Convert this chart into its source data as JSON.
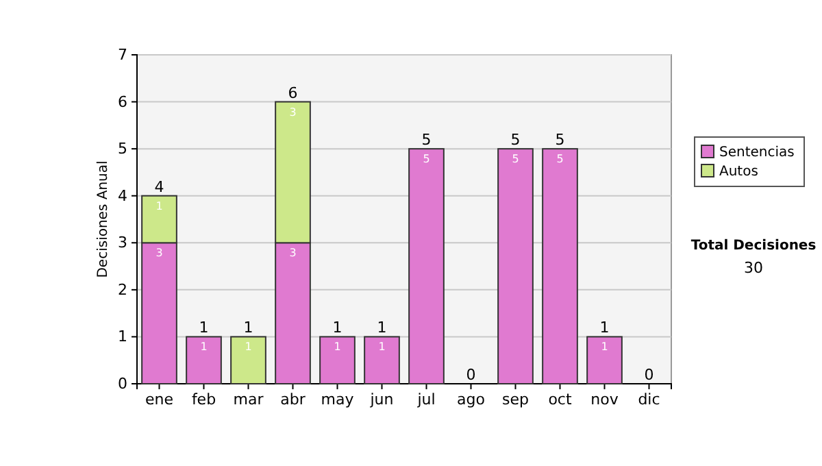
{
  "chart_data": {
    "type": "bar",
    "stacked": true,
    "ylabel": "Decisiones Anual",
    "categories": [
      "ene",
      "feb",
      "mar",
      "abr",
      "may",
      "jun",
      "jul",
      "ago",
      "sep",
      "oct",
      "nov",
      "dic"
    ],
    "series": [
      {
        "name": "Sentencias",
        "color": "#e07ad0",
        "values": [
          3,
          1,
          0,
          3,
          1,
          1,
          5,
          0,
          5,
          5,
          1,
          0
        ],
        "value_labels": [
          "3",
          "1",
          null,
          "3",
          "1",
          "1",
          "5",
          null,
          "5",
          "5",
          "1",
          null
        ]
      },
      {
        "name": "Autos",
        "color": "#cde88a",
        "values": [
          1,
          0,
          1,
          3,
          0,
          0,
          0,
          0,
          0,
          0,
          0,
          0
        ],
        "value_labels": [
          "1",
          null,
          "1",
          "3",
          null,
          null,
          null,
          null,
          null,
          null,
          null,
          null
        ]
      }
    ],
    "totals": [
      "4",
      "1",
      "1",
      "6",
      "1",
      "1",
      "5",
      "0",
      "5",
      "5",
      "1",
      "0"
    ],
    "ylim": [
      0,
      7
    ],
    "yticks": [
      0,
      1,
      2,
      3,
      4,
      5,
      6,
      7
    ],
    "grid": "y",
    "legend": "right",
    "annotations": [
      "Total Decisiones",
      "30"
    ]
  }
}
